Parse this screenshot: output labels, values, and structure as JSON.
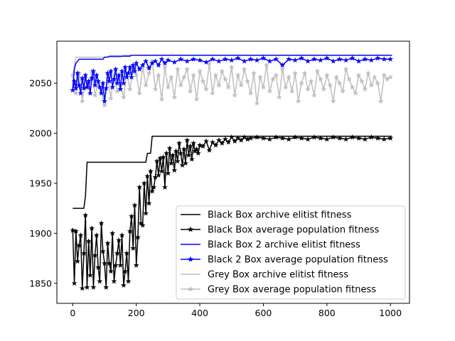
{
  "chart_data": {
    "type": "line",
    "xlim": [
      -50,
      1060
    ],
    "ylim": [
      1830,
      2092
    ],
    "x_ticks": [
      0,
      200,
      400,
      600,
      800,
      1000
    ],
    "y_ticks": [
      1850,
      1900,
      1950,
      2000,
      2050
    ],
    "grid": false,
    "legend_position": "lower-right",
    "series": [
      {
        "name": "Black Box archive elitist fitness",
        "color": "#000000",
        "marker": "none",
        "x": [
          0,
          35,
          40,
          45,
          230,
          235,
          245,
          250,
          1005
        ],
        "y": [
          1925,
          1925,
          1937,
          1971,
          1971,
          1980,
          1980,
          1997,
          1997
        ]
      },
      {
        "name": "Black Box average population fitness",
        "color": "#000000",
        "marker": "star",
        "x": [
          0,
          5,
          10,
          15,
          20,
          25,
          30,
          35,
          40,
          45,
          50,
          55,
          60,
          65,
          70,
          75,
          80,
          85,
          90,
          95,
          100,
          105,
          110,
          115,
          120,
          125,
          130,
          135,
          140,
          145,
          150,
          155,
          160,
          165,
          170,
          175,
          180,
          185,
          190,
          195,
          200,
          205,
          210,
          215,
          220,
          225,
          230,
          235,
          240,
          245,
          250,
          255,
          260,
          265,
          270,
          275,
          280,
          285,
          290,
          295,
          300,
          305,
          310,
          315,
          320,
          325,
          330,
          335,
          340,
          345,
          350,
          355,
          360,
          365,
          370,
          375,
          380,
          385,
          390,
          395,
          400,
          410,
          420,
          430,
          440,
          450,
          460,
          470,
          480,
          490,
          500,
          510,
          520,
          530,
          540,
          550,
          560,
          580,
          600,
          620,
          640,
          660,
          680,
          700,
          720,
          740,
          760,
          780,
          800,
          820,
          840,
          860,
          880,
          900,
          920,
          940,
          960,
          980,
          1000
        ],
        "y": [
          1903,
          1850,
          1902,
          1872,
          1888,
          1898,
          1845,
          1880,
          1918,
          1846,
          1892,
          1858,
          1905,
          1846,
          1878,
          1898,
          1866,
          1852,
          1910,
          1882,
          1870,
          1846,
          1890,
          1870,
          1862,
          1900,
          1852,
          1868,
          1880,
          1893,
          1868,
          1898,
          1848,
          1862,
          1880,
          1852,
          1902,
          1917,
          1885,
          1928,
          1868,
          1896,
          1946,
          1910,
          1908,
          1950,
          1920,
          1957,
          1930,
          1962,
          1942,
          1946,
          1956,
          1972,
          1958,
          1975,
          1962,
          1976,
          1946,
          1980,
          1960,
          1985,
          1970,
          1978,
          1963,
          1982,
          1972,
          1990,
          1980,
          1968,
          1984,
          1970,
          1993,
          1978,
          1987,
          1974,
          1990,
          1982,
          1984,
          1980,
          1988,
          1987,
          1992,
          1983,
          1991,
          1988,
          1993,
          1990,
          1994,
          1991,
          1996,
          1992,
          1995,
          1993,
          1996,
          1994,
          1995,
          1996,
          1995,
          1994,
          1996,
          1995,
          1994,
          1996,
          1995,
          1994,
          1996,
          1995,
          1994,
          1996,
          1995,
          1994,
          1996,
          1995,
          1994,
          1996,
          1995,
          1994,
          1995
        ]
      },
      {
        "name": "Black Box 2 archive elitist fitness",
        "color": "#0000ff",
        "marker": "none",
        "x": [
          0,
          5,
          10,
          15,
          20,
          95,
          100,
          110,
          115,
          180,
          185,
          1005
        ],
        "y": [
          2045,
          2064,
          2070,
          2072,
          2074,
          2074,
          2076,
          2076,
          2077,
          2077,
          2078,
          2078
        ]
      },
      {
        "name": "Black 2 Box average population fitness",
        "color": "#0000ff",
        "marker": "star",
        "x": [
          0,
          5,
          10,
          15,
          20,
          25,
          30,
          35,
          40,
          45,
          50,
          55,
          60,
          65,
          70,
          75,
          80,
          85,
          90,
          95,
          100,
          105,
          110,
          115,
          120,
          125,
          130,
          135,
          140,
          145,
          150,
          155,
          160,
          165,
          170,
          175,
          180,
          185,
          190,
          195,
          200,
          210,
          220,
          230,
          240,
          250,
          260,
          270,
          280,
          290,
          300,
          320,
          340,
          360,
          380,
          400,
          420,
          440,
          460,
          480,
          500,
          520,
          540,
          560,
          580,
          600,
          620,
          640,
          660,
          680,
          700,
          720,
          740,
          760,
          780,
          800,
          820,
          840,
          860,
          880,
          900,
          920,
          940,
          960,
          980,
          1000
        ],
        "y": [
          2043,
          2052,
          2045,
          2060,
          2048,
          2040,
          2055,
          2045,
          2058,
          2046,
          2052,
          2040,
          2055,
          2062,
          2048,
          2058,
          2052,
          2046,
          2040,
          2050,
          2032,
          2045,
          2060,
          2052,
          2062,
          2046,
          2054,
          2064,
          2050,
          2058,
          2044,
          2062,
          2050,
          2066,
          2056,
          2060,
          2066,
          2056,
          2068,
          2062,
          2070,
          2064,
          2068,
          2072,
          2065,
          2070,
          2072,
          2068,
          2074,
          2070,
          2073,
          2071,
          2074,
          2072,
          2074,
          2073,
          2071,
          2074,
          2072,
          2074,
          2073,
          2075,
          2072,
          2074,
          2073,
          2075,
          2072,
          2074,
          2068,
          2074,
          2073,
          2075,
          2072,
          2074,
          2073,
          2075,
          2072,
          2074,
          2073,
          2075,
          2072,
          2074,
          2073,
          2075,
          2074,
          2074
        ]
      },
      {
        "name": "Grey Box archive elitist fitness",
        "color": "#bfbfbf",
        "marker": "none",
        "x": [
          0,
          5,
          10,
          150,
          160,
          1005
        ],
        "y": [
          2055,
          2068,
          2076,
          2076,
          2078,
          2078
        ]
      },
      {
        "name": "Grey Box average population fitness",
        "color": "#bfbfbf",
        "marker": "star",
        "x": [
          0,
          10,
          20,
          30,
          40,
          50,
          60,
          70,
          80,
          90,
          100,
          110,
          120,
          130,
          140,
          150,
          160,
          170,
          180,
          190,
          200,
          210,
          220,
          230,
          240,
          250,
          260,
          270,
          280,
          290,
          300,
          310,
          320,
          330,
          340,
          350,
          360,
          370,
          380,
          390,
          400,
          410,
          420,
          430,
          440,
          450,
          460,
          470,
          480,
          490,
          500,
          510,
          520,
          530,
          540,
          550,
          560,
          570,
          580,
          590,
          600,
          610,
          620,
          630,
          640,
          650,
          660,
          670,
          680,
          690,
          700,
          710,
          720,
          730,
          740,
          750,
          760,
          770,
          780,
          790,
          800,
          810,
          820,
          830,
          840,
          850,
          860,
          870,
          880,
          890,
          900,
          910,
          920,
          930,
          940,
          950,
          960,
          970,
          980,
          990,
          1000
        ],
        "y": [
          2058,
          2040,
          2060,
          2032,
          2055,
          2045,
          2062,
          2038,
          2050,
          2042,
          2028,
          2055,
          2035,
          2058,
          2042,
          2048,
          2036,
          2060,
          2044,
          2064,
          2058,
          2040,
          2066,
          2048,
          2060,
          2072,
          2044,
          2058,
          2034,
          2066,
          2046,
          2056,
          2036,
          2064,
          2048,
          2056,
          2064,
          2042,
          2058,
          2034,
          2062,
          2052,
          2044,
          2070,
          2040,
          2058,
          2048,
          2062,
          2054,
          2046,
          2066,
          2038,
          2058,
          2048,
          2064,
          2052,
          2040,
          2060,
          2030,
          2056,
          2046,
          2068,
          2042,
          2054,
          2058,
          2036,
          2064,
          2046,
          2056,
          2042,
          2060,
          2032,
          2050,
          2060,
          2044,
          2052,
          2038,
          2062,
          2054,
          2044,
          2058,
          2048,
          2032,
          2056,
          2050,
          2042,
          2064,
          2054,
          2046,
          2040,
          2058,
          2052,
          2044,
          2060,
          2048,
          2056,
          2050,
          2032,
          2058,
          2054,
          2056
        ]
      }
    ]
  }
}
